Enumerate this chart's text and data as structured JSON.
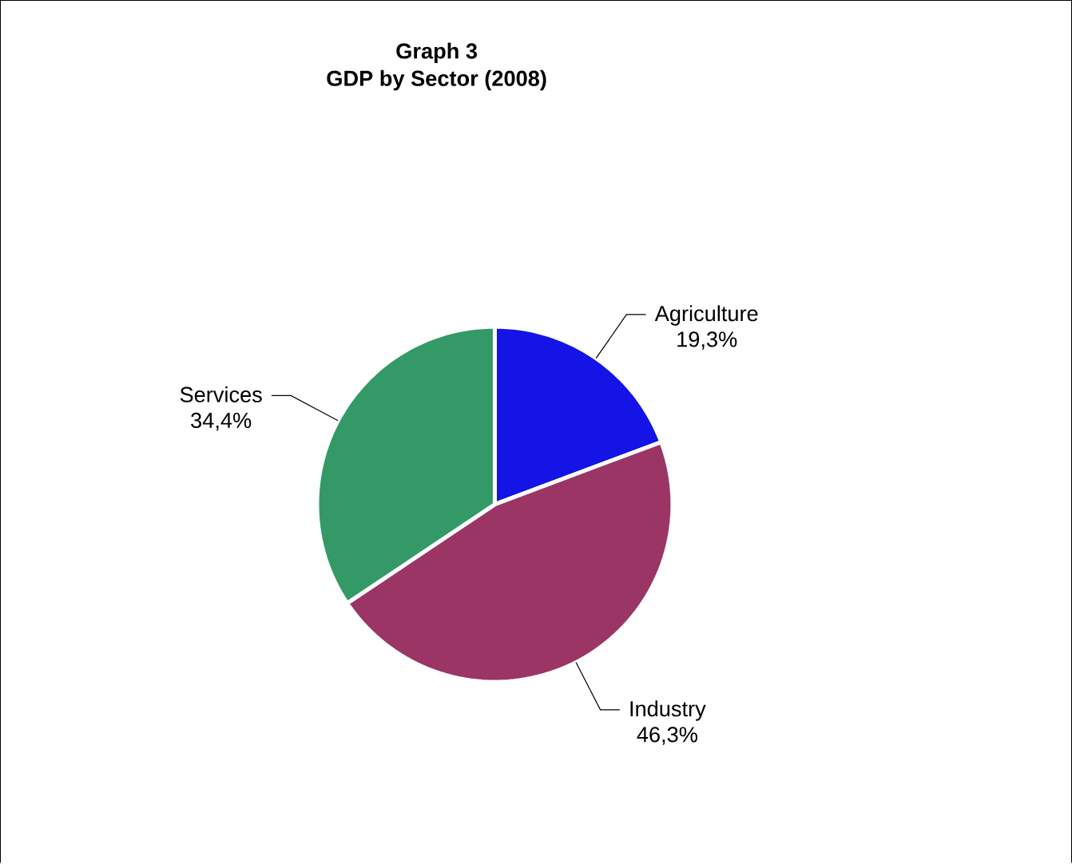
{
  "chart_data": {
    "type": "pie",
    "title": "Graph 3",
    "subtitle": "GDP by Sector (2008)",
    "categories": [
      "Agriculture",
      "Industry",
      "Services"
    ],
    "values": [
      19.3,
      46.3,
      34.4
    ],
    "value_labels": [
      "19,3%",
      "46,3%",
      "34,4%"
    ],
    "colors": [
      "#1414e6",
      "#9b3566",
      "#339966"
    ]
  }
}
